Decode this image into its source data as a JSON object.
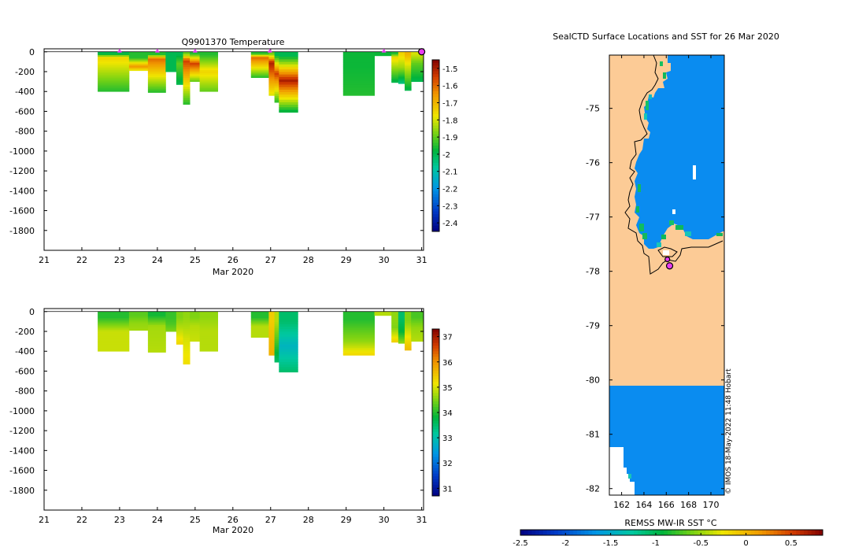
{
  "chart_data": [
    {
      "type": "heatmap",
      "title": "Q9901370  Temperature",
      "xlabel": "Mar 2020",
      "x_ticks": [
        "21",
        "22",
        "23",
        "24",
        "25",
        "26",
        "27",
        "28",
        "29",
        "30",
        "31"
      ],
      "xlim": [
        21,
        31.05
      ],
      "y_ticks": [
        "0",
        "-200",
        "-400",
        "-600",
        "-800",
        "-1000",
        "-1200",
        "-1400",
        "-1600",
        "-1800"
      ],
      "y_tick_values": [
        0,
        -200,
        -400,
        -600,
        -800,
        -1000,
        -1200,
        -1400,
        -1600,
        -1800
      ],
      "ylim": [
        -2000,
        30
      ],
      "colorbar": {
        "ticks": [
          "-1.5",
          "-1.6",
          "-1.7",
          "-1.8",
          "-1.9",
          "-2",
          "-2.1",
          "-2.2",
          "-2.3",
          "-2.4"
        ],
        "tick_values": [
          -1.5,
          -1.6,
          -1.7,
          -1.8,
          -1.9,
          -2.0,
          -2.1,
          -2.2,
          -2.3,
          -2.4
        ],
        "range": [
          -2.45,
          -1.45
        ]
      },
      "profiles": [
        {
          "x0": 22.42,
          "x1": 23.25,
          "depth": 400,
          "surf": -2.0,
          "surfDepth": 20,
          "ther": -1.75,
          "therDepth": 60,
          "deep": -1.95
        },
        {
          "x0": 23.25,
          "x1": 23.75,
          "depth": 190,
          "surf": -1.95,
          "surfDepth": 60,
          "ther": -1.65,
          "therDepth": 150,
          "deep": -1.8
        },
        {
          "x0": 23.75,
          "x1": 24.22,
          "depth": 410,
          "surf": -1.95,
          "surfDepth": 30,
          "ther": -1.6,
          "therDepth": 70,
          "deep": -1.95
        },
        {
          "x0": 24.22,
          "x1": 24.5,
          "depth": 200,
          "surf": -2.0,
          "surfDepth": 30,
          "ther": -2.0,
          "therDepth": 100,
          "deep": -2.0
        },
        {
          "x0": 24.5,
          "x1": 24.68,
          "depth": 330,
          "surf": -2.0,
          "surfDepth": 30,
          "ther": -1.9,
          "therDepth": 120,
          "deep": -2.0
        },
        {
          "x0": 24.68,
          "x1": 24.86,
          "depth": 530,
          "surf": -1.9,
          "surfDepth": 20,
          "ther": -1.55,
          "therDepth": 90,
          "deep": -1.95
        },
        {
          "x0": 24.86,
          "x1": 25.12,
          "depth": 300,
          "surf": -1.95,
          "surfDepth": 20,
          "ther": -1.55,
          "therDepth": 120,
          "deep": -1.9
        },
        {
          "x0": 25.12,
          "x1": 25.6,
          "depth": 400,
          "surf": -1.95,
          "surfDepth": 30,
          "ther": -1.75,
          "therDepth": 200,
          "deep": -1.9
        },
        {
          "x0": 26.48,
          "x1": 26.95,
          "depth": 260,
          "surf": -1.95,
          "surfDepth": 20,
          "ther": -1.6,
          "therDepth": 60,
          "deep": -1.95
        },
        {
          "x0": 26.95,
          "x1": 27.1,
          "depth": 440,
          "surf": -1.9,
          "surfDepth": 20,
          "ther": -1.5,
          "therDepth": 110,
          "deep": -1.8
        },
        {
          "x0": 27.1,
          "x1": 27.22,
          "depth": 510,
          "surf": -2.0,
          "surfDepth": 30,
          "ther": -1.55,
          "therDepth": 220,
          "deep": -1.95
        },
        {
          "x0": 27.22,
          "x1": 27.72,
          "depth": 610,
          "surf": -2.0,
          "surfDepth": 40,
          "ther": -1.5,
          "therDepth": 290,
          "deep": -2.0
        },
        {
          "x0": 28.92,
          "x1": 29.75,
          "depth": 440,
          "surf": -1.97,
          "surfDepth": 30,
          "ther": -1.97,
          "therDepth": 150,
          "deep": -1.95
        },
        {
          "x0": 29.75,
          "x1": 30.2,
          "depth": 40,
          "surf": -1.97,
          "surfDepth": 10,
          "ther": -1.97,
          "therDepth": 30,
          "deep": -1.97
        },
        {
          "x0": 30.2,
          "x1": 30.38,
          "depth": 310,
          "surf": -1.95,
          "surfDepth": 20,
          "ther": -1.75,
          "therDepth": 60,
          "deep": -2.0
        },
        {
          "x0": 30.38,
          "x1": 30.55,
          "depth": 320,
          "surf": -1.75,
          "surfDepth": 20,
          "ther": -1.85,
          "therDepth": 160,
          "deep": -2.05
        },
        {
          "x0": 30.55,
          "x1": 30.72,
          "depth": 390,
          "surf": -1.7,
          "surfDepth": 30,
          "ther": -1.8,
          "therDepth": 140,
          "deep": -2.0
        },
        {
          "x0": 30.72,
          "x1": 31.05,
          "depth": 300,
          "surf": -1.8,
          "surfDepth": 20,
          "ther": -1.9,
          "therDepth": 120,
          "deep": -2.0
        }
      ],
      "markers": [
        23.0,
        24.0,
        25.0,
        26.98,
        30.0
      ],
      "end_marker": 31.0
    },
    {
      "type": "heatmap",
      "title": "",
      "xlabel": "Mar 2020",
      "x_ticks": [
        "21",
        "22",
        "23",
        "24",
        "25",
        "26",
        "27",
        "28",
        "29",
        "30",
        "31"
      ],
      "xlim": [
        21,
        31.05
      ],
      "y_ticks": [
        "0",
        "-200",
        "-400",
        "-600",
        "-800",
        "-1000",
        "-1200",
        "-1400",
        "-1600",
        "-1800"
      ],
      "y_tick_values": [
        0,
        -200,
        -400,
        -600,
        -800,
        -1000,
        -1200,
        -1400,
        -1600,
        -1800
      ],
      "ylim": [
        -2000,
        30
      ],
      "colorbar": {
        "ticks": [
          "37",
          "36",
          "35",
          "34",
          "33",
          "32",
          "31"
        ],
        "tick_values": [
          37,
          36,
          35,
          34,
          33,
          32,
          31
        ],
        "range": [
          30.7,
          37.3
        ]
      },
      "profiles": [
        {
          "x0": 22.42,
          "x1": 23.25,
          "depth": 400,
          "surf": 34.0,
          "surfDepth": 60,
          "ther": 34.9,
          "therDepth": 200,
          "deep": 34.9
        },
        {
          "x0": 23.25,
          "x1": 23.75,
          "depth": 190,
          "surf": 34.3,
          "surfDepth": 40,
          "ther": 34.6,
          "therDepth": 120,
          "deep": 34.7
        },
        {
          "x0": 23.75,
          "x1": 24.22,
          "depth": 410,
          "surf": 33.9,
          "surfDepth": 40,
          "ther": 34.7,
          "therDepth": 150,
          "deep": 34.8
        },
        {
          "x0": 24.22,
          "x1": 24.5,
          "depth": 200,
          "surf": 34.1,
          "surfDepth": 60,
          "ther": 34.2,
          "therDepth": 120,
          "deep": 34.5
        },
        {
          "x0": 24.5,
          "x1": 24.68,
          "depth": 330,
          "surf": 34.5,
          "surfDepth": 60,
          "ther": 34.9,
          "therDepth": 200,
          "deep": 35.3
        },
        {
          "x0": 24.68,
          "x1": 24.86,
          "depth": 530,
          "surf": 34.6,
          "surfDepth": 60,
          "ther": 35.0,
          "therDepth": 300,
          "deep": 35.2
        },
        {
          "x0": 24.86,
          "x1": 25.12,
          "depth": 300,
          "surf": 34.5,
          "surfDepth": 60,
          "ther": 34.8,
          "therDepth": 150,
          "deep": 34.9
        },
        {
          "x0": 25.12,
          "x1": 25.6,
          "depth": 400,
          "surf": 34.6,
          "surfDepth": 60,
          "ther": 34.8,
          "therDepth": 200,
          "deep": 34.8
        },
        {
          "x0": 26.48,
          "x1": 26.95,
          "depth": 260,
          "surf": 34.0,
          "surfDepth": 60,
          "ther": 34.8,
          "therDepth": 150,
          "deep": 34.8
        },
        {
          "x0": 26.95,
          "x1": 27.1,
          "depth": 440,
          "surf": 35.4,
          "surfDepth": 100,
          "ther": 35.6,
          "therDepth": 300,
          "deep": 35.7
        },
        {
          "x0": 27.1,
          "x1": 27.22,
          "depth": 510,
          "surf": 34.8,
          "surfDepth": 100,
          "ther": 34.2,
          "therDepth": 300,
          "deep": 33.5
        },
        {
          "x0": 27.22,
          "x1": 27.72,
          "depth": 610,
          "surf": 33.5,
          "surfDepth": 100,
          "ther": 32.8,
          "therDepth": 350,
          "deep": 33.5
        },
        {
          "x0": 28.92,
          "x1": 29.75,
          "depth": 440,
          "surf": 34.0,
          "surfDepth": 80,
          "ther": 34.6,
          "therDepth": 300,
          "deep": 35.3
        },
        {
          "x0": 29.75,
          "x1": 30.2,
          "depth": 40,
          "surf": 34.8,
          "surfDepth": 10,
          "ther": 34.8,
          "therDepth": 30,
          "deep": 34.8
        },
        {
          "x0": 30.2,
          "x1": 30.38,
          "depth": 310,
          "surf": 34.6,
          "surfDepth": 60,
          "ther": 34.5,
          "therDepth": 160,
          "deep": 35.4
        },
        {
          "x0": 30.38,
          "x1": 30.55,
          "depth": 320,
          "surf": 33.5,
          "surfDepth": 60,
          "ther": 33.8,
          "therDepth": 200,
          "deep": 34.6
        },
        {
          "x0": 30.55,
          "x1": 30.72,
          "depth": 390,
          "surf": 34.5,
          "surfDepth": 100,
          "ther": 35.1,
          "therDepth": 250,
          "deep": 35.6
        },
        {
          "x0": 30.72,
          "x1": 31.05,
          "depth": 300,
          "surf": 34.2,
          "surfDepth": 60,
          "ther": 34.6,
          "therDepth": 160,
          "deep": 34.8
        }
      ],
      "markers": [],
      "end_marker": null
    },
    {
      "type": "heatmap",
      "title": "SealCTD Surface Locations and SST for 26 Mar 2020",
      "xlabel": "",
      "ylabel": "",
      "x_ticks": [
        "162",
        "164",
        "166",
        "168",
        "170"
      ],
      "x_tick_values": [
        162,
        164,
        166,
        168,
        170
      ],
      "xlim": [
        160.9,
        171.2
      ],
      "y_ticks": [
        "-75",
        "-76",
        "-77",
        "-78",
        "-79",
        "-80",
        "-81",
        "-82"
      ],
      "y_tick_values": [
        -75,
        -76,
        -77,
        -78,
        -79,
        -80,
        -81,
        -82
      ],
      "ylim": [
        -82.12,
        -74.02
      ],
      "colorbar": {
        "label": "REMSS MW-IR SST °C",
        "ticks": [
          "-2.5",
          "-2",
          "-1.5",
          "-1",
          "-0.5",
          "0",
          "0.5"
        ],
        "tick_values": [
          -2.5,
          -2,
          -1.5,
          -1,
          -0.5,
          0,
          0.5
        ],
        "range": [
          -2.5,
          0.85
        ]
      },
      "sst_value": -1.6,
      "locations": [
        {
          "lon": 166.1,
          "lat": -77.78
        },
        {
          "lon": 166.3,
          "lat": -77.9
        }
      ],
      "credit": "© IMOS 18-May-2022 11:48 Hobart"
    }
  ],
  "colors": {
    "land": "#FCCB96",
    "sea": "#0A8CF0",
    "marker": "#E83DF0"
  }
}
